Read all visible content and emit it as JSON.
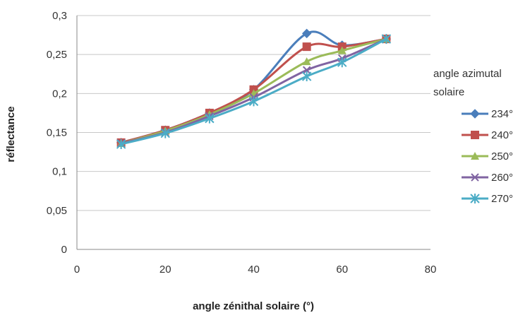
{
  "chart_data": {
    "type": "line",
    "xlabel": "angle zénithal solaire (°)",
    "ylabel": "réflectance",
    "xlim": [
      0,
      80
    ],
    "ylim": [
      0,
      0.3
    ],
    "x_ticks": [
      "0",
      "20",
      "40",
      "60",
      "80"
    ],
    "y_ticks": [
      "0",
      "0,05",
      "0,1",
      "0,15",
      "0,2",
      "0,25",
      "0,3"
    ],
    "grid": "horizontal",
    "legend_title": "angle azimutal solaire",
    "legend_placement": "right",
    "series": [
      {
        "name": "234°",
        "color": "#4a7ebb",
        "marker": "diamond",
        "x": [
          10,
          20,
          30,
          40,
          52,
          60,
          70
        ],
        "y": [
          0.137,
          0.153,
          0.175,
          0.205,
          0.277,
          0.262,
          0.27
        ]
      },
      {
        "name": "240°",
        "color": "#c0504d",
        "marker": "square",
        "x": [
          10,
          20,
          30,
          40,
          52,
          60,
          70
        ],
        "y": [
          0.137,
          0.153,
          0.175,
          0.205,
          0.26,
          0.26,
          0.27
        ]
      },
      {
        "name": "250°",
        "color": "#9bbb59",
        "marker": "triangle",
        "x": [
          10,
          20,
          30,
          40,
          52,
          60,
          70
        ],
        "y": [
          0.136,
          0.152,
          0.173,
          0.2,
          0.241,
          0.255,
          0.27
        ]
      },
      {
        "name": "260°",
        "color": "#8064a2",
        "marker": "x",
        "x": [
          10,
          20,
          30,
          40,
          52,
          60,
          70
        ],
        "y": [
          0.136,
          0.15,
          0.171,
          0.195,
          0.23,
          0.245,
          0.27
        ]
      },
      {
        "name": "270°",
        "color": "#4bacc6",
        "marker": "star",
        "x": [
          10,
          20,
          30,
          40,
          52,
          60,
          70
        ],
        "y": [
          0.135,
          0.149,
          0.168,
          0.19,
          0.222,
          0.24,
          0.27
        ]
      }
    ]
  }
}
